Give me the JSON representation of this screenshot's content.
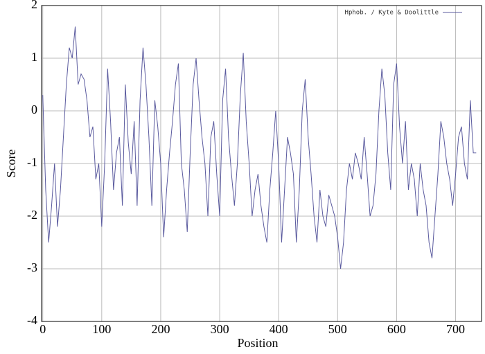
{
  "chart_data": {
    "type": "line",
    "xlabel": "Position",
    "ylabel": "Score",
    "legend": "upper right",
    "grid": true,
    "xlim": [
      -2,
      744
    ],
    "ylim": [
      -4,
      2
    ],
    "xticks": [
      0,
      100,
      200,
      300,
      400,
      500,
      600,
      700
    ],
    "yticks": [
      -4,
      -3,
      -2,
      -1,
      0,
      1,
      2
    ],
    "x": [
      0,
      5,
      10,
      15,
      20,
      25,
      30,
      35,
      40,
      45,
      50,
      55,
      60,
      65,
      70,
      75,
      80,
      85,
      90,
      95,
      100,
      105,
      110,
      115,
      120,
      125,
      130,
      135,
      140,
      145,
      150,
      155,
      160,
      165,
      170,
      175,
      180,
      185,
      190,
      195,
      200,
      205,
      210,
      215,
      220,
      225,
      230,
      235,
      240,
      245,
      250,
      255,
      260,
      265,
      270,
      275,
      280,
      285,
      290,
      295,
      300,
      305,
      310,
      315,
      320,
      325,
      330,
      335,
      340,
      345,
      350,
      355,
      360,
      365,
      370,
      375,
      380,
      385,
      390,
      395,
      400,
      405,
      410,
      415,
      420,
      425,
      430,
      435,
      440,
      445,
      450,
      455,
      460,
      465,
      470,
      475,
      480,
      485,
      490,
      495,
      500,
      505,
      510,
      515,
      520,
      525,
      530,
      535,
      540,
      545,
      550,
      555,
      560,
      565,
      570,
      575,
      580,
      585,
      590,
      595,
      600,
      605,
      610,
      615,
      620,
      625,
      630,
      635,
      640,
      645,
      650,
      655,
      660,
      665,
      670,
      675,
      680,
      685,
      690,
      695,
      700,
      705,
      710,
      715,
      720,
      725,
      730,
      735
    ],
    "series": [
      {
        "name": "Hphob. / Kyte & Doolittle",
        "color": "#5a5a9e",
        "values": [
          0.3,
          -1.5,
          -2.5,
          -1.8,
          -1.0,
          -2.2,
          -1.5,
          -0.5,
          0.5,
          1.2,
          1.0,
          1.6,
          0.5,
          0.7,
          0.6,
          0.2,
          -0.5,
          -0.3,
          -1.3,
          -1.0,
          -2.2,
          -1.0,
          0.8,
          -0.2,
          -1.5,
          -0.8,
          -0.5,
          -1.8,
          0.5,
          -0.6,
          -1.2,
          -0.2,
          -1.8,
          0.2,
          1.2,
          0.5,
          -0.5,
          -1.8,
          0.2,
          -0.3,
          -1.0,
          -2.4,
          -1.5,
          -0.8,
          -0.2,
          0.5,
          0.9,
          -1.0,
          -1.5,
          -2.3,
          -0.8,
          0.5,
          1.0,
          0.2,
          -0.5,
          -1.0,
          -2.0,
          -0.5,
          -0.2,
          -1.2,
          -2.0,
          0.2,
          0.8,
          -0.5,
          -1.2,
          -1.8,
          -1.0,
          0.3,
          1.1,
          -0.2,
          -1.0,
          -2.0,
          -1.5,
          -1.2,
          -1.8,
          -2.2,
          -2.5,
          -1.5,
          -0.8,
          0.0,
          -1.0,
          -2.5,
          -1.5,
          -0.5,
          -0.8,
          -1.2,
          -2.5,
          -1.5,
          0.0,
          0.6,
          -0.5,
          -1.2,
          -2.0,
          -2.5,
          -1.5,
          -2.0,
          -2.2,
          -1.6,
          -1.8,
          -2.0,
          -2.4,
          -3.0,
          -2.5,
          -1.5,
          -1.0,
          -1.3,
          -0.8,
          -1.0,
          -1.3,
          -0.5,
          -1.2,
          -2.0,
          -1.8,
          -1.2,
          0.0,
          0.8,
          0.3,
          -0.8,
          -1.5,
          0.5,
          0.9,
          -0.3,
          -1.0,
          -0.2,
          -1.5,
          -1.0,
          -1.3,
          -2.0,
          -1.0,
          -1.5,
          -1.8,
          -2.5,
          -2.8,
          -2.0,
          -1.2,
          -0.2,
          -0.5,
          -1.0,
          -1.3,
          -1.8,
          -1.2,
          -0.5,
          -0.3,
          -1.0,
          -1.3,
          0.2,
          -0.8,
          -0.8
        ]
      }
    ]
  }
}
